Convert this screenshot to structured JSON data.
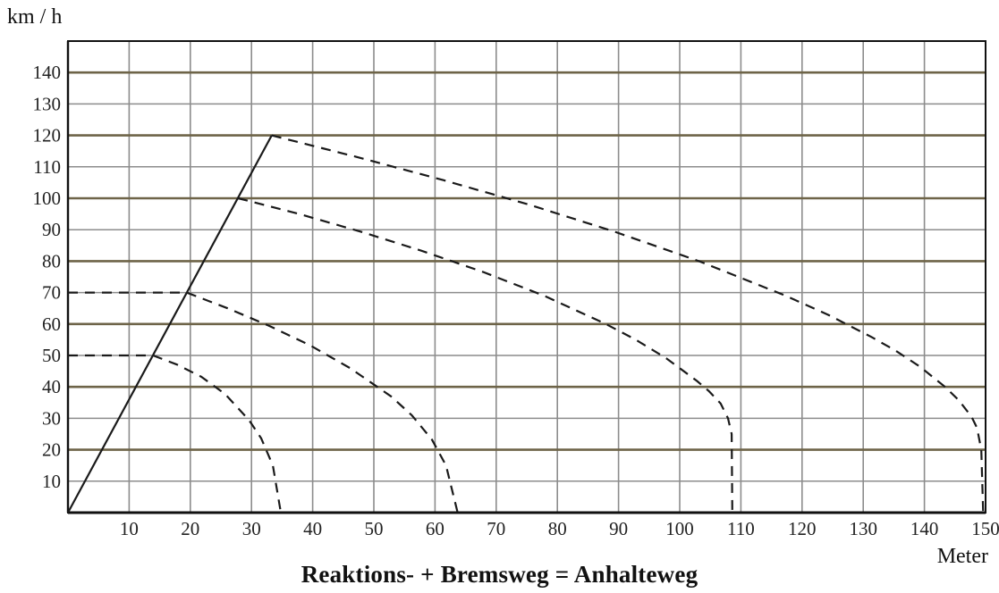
{
  "chart_data": {
    "type": "line",
    "title": "Reaktions- + Bremsweg = Anhalteweg",
    "xlabel": "Meter",
    "ylabel": "km / h",
    "xlim": [
      0,
      150
    ],
    "ylim": [
      0,
      150
    ],
    "x_ticks": [
      10,
      20,
      30,
      40,
      50,
      60,
      70,
      80,
      90,
      100,
      110,
      120,
      130,
      140,
      150
    ],
    "y_ticks": [
      10,
      20,
      30,
      40,
      50,
      60,
      70,
      80,
      90,
      100,
      110,
      120,
      130,
      140
    ],
    "grid": true,
    "colors": {
      "major_grid": "#6e6448",
      "minor_grid": "#8c8c8c",
      "line": "#1a1a1a",
      "axis": "#111111"
    },
    "series": [
      {
        "style": "solid",
        "points": [
          [
            0,
            0
          ],
          [
            33.3,
            120
          ]
        ]
      },
      {
        "style": "dashed",
        "points": [
          [
            0,
            50
          ],
          [
            13.9,
            50
          ],
          [
            17.8,
            47.1
          ],
          [
            21.8,
            43.2
          ],
          [
            25.7,
            37.7
          ],
          [
            29.6,
            29.4
          ],
          [
            31.6,
            23.6
          ],
          [
            33.5,
            15.0
          ],
          [
            34.8,
            0
          ]
        ]
      },
      {
        "style": "dashed",
        "points": [
          [
            0,
            70
          ],
          [
            19.4,
            70
          ],
          [
            26.1,
            65.0
          ],
          [
            32.8,
            59.5
          ],
          [
            39.5,
            53.3
          ],
          [
            46.1,
            46.0
          ],
          [
            52.8,
            37.0
          ],
          [
            56.2,
            31.0
          ],
          [
            59.5,
            23.2
          ],
          [
            61.8,
            15.0
          ],
          [
            63.7,
            0
          ]
        ]
      },
      {
        "style": "dashed",
        "points": [
          [
            27.8,
            100
          ],
          [
            37.8,
            95.0
          ],
          [
            47.8,
            89.4
          ],
          [
            57.8,
            83.3
          ],
          [
            67.8,
            76.6
          ],
          [
            77.8,
            69.0
          ],
          [
            87.8,
            60.1
          ],
          [
            92.8,
            55.0
          ],
          [
            97.8,
            49.1
          ],
          [
            102.8,
            41.9
          ],
          [
            104.8,
            38.6
          ],
          [
            106.7,
            34.7
          ],
          [
            107.9,
            30.0
          ],
          [
            108.5,
            25.0
          ],
          [
            108.6,
            0
          ]
        ]
      },
      {
        "style": "dashed",
        "points": [
          [
            33.3,
            120
          ],
          [
            47.3,
            113.1
          ],
          [
            61.3,
            105.8
          ],
          [
            75.3,
            98.0
          ],
          [
            89.3,
            89.4
          ],
          [
            103.3,
            79.9
          ],
          [
            117.3,
            69.0
          ],
          [
            124.3,
            62.9
          ],
          [
            131.3,
            55.9
          ],
          [
            135.3,
            51.5
          ],
          [
            139.3,
            46.4
          ],
          [
            143.3,
            40.1
          ],
          [
            145.6,
            35.8
          ],
          [
            147.7,
            30.5
          ],
          [
            148.6,
            27.0
          ],
          [
            149.3,
            20.0
          ],
          [
            149.6,
            0
          ]
        ]
      }
    ]
  }
}
